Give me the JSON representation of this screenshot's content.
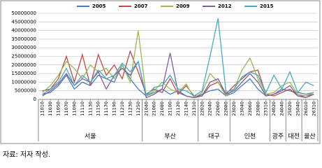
{
  "chart_data": {
    "type": "line",
    "categories": [
      "11010",
      "11030",
      "11050",
      "11070",
      "11090",
      "11110",
      "11130",
      "11150",
      "11170",
      "11190",
      "11210",
      "11230",
      "11250",
      "21040",
      "21060",
      "21080",
      "21100",
      "21120",
      "21140",
      "21310",
      "22020",
      "22040",
      "22060",
      "22080",
      "23020",
      "23040",
      "23060",
      "23080",
      "23310",
      "24020",
      "24040",
      "25020",
      "25040",
      "26010",
      "26310"
    ],
    "groups": [
      {
        "label": "서울",
        "count": 13
      },
      {
        "label": "부산",
        "count": 7
      },
      {
        "label": "대구",
        "count": 4
      },
      {
        "label": "인천",
        "count": 5
      },
      {
        "label": "광주",
        "count": 2
      },
      {
        "label": "대전",
        "count": 2
      },
      {
        "label": "울산",
        "count": 2
      }
    ],
    "series": [
      {
        "name": "2005",
        "color": "#4a7ebb",
        "values": [
          3000000,
          4000000,
          8000000,
          14000000,
          6000000,
          10000000,
          8000000,
          14000000,
          12000000,
          10000000,
          20000000,
          12000000,
          6000000,
          2000000,
          4000000,
          6000000,
          3000000,
          5000000,
          2000000,
          1000000,
          3000000,
          5000000,
          6000000,
          2000000,
          4000000,
          8000000,
          12000000,
          6000000,
          2000000,
          3000000,
          6000000,
          5000000,
          4000000,
          3000000,
          4000000
        ]
      },
      {
        "name": "2007",
        "color": "#be4b48",
        "values": [
          5000000,
          6000000,
          12000000,
          25000000,
          10000000,
          26000000,
          8000000,
          26000000,
          14000000,
          20000000,
          12000000,
          28000000,
          16000000,
          3000000,
          6000000,
          4000000,
          12000000,
          3000000,
          8000000,
          2000000,
          2000000,
          8000000,
          10000000,
          3000000,
          8000000,
          12000000,
          16000000,
          17000000,
          3000000,
          2000000,
          4000000,
          6000000,
          2000000,
          2000000,
          3000000
        ]
      },
      {
        "name": "2009",
        "color": "#98b954",
        "values": [
          4000000,
          8000000,
          14000000,
          22000000,
          18000000,
          12000000,
          20000000,
          16000000,
          18000000,
          12000000,
          20000000,
          10000000,
          40000000,
          2000000,
          5000000,
          10000000,
          6000000,
          4000000,
          9000000,
          1000000,
          4000000,
          15000000,
          10000000,
          2000000,
          6000000,
          17000000,
          24000000,
          12000000,
          3000000,
          4000000,
          8000000,
          10000000,
          3000000,
          2000000,
          4000000
        ]
      },
      {
        "name": "2012",
        "color": "#7d60a0",
        "values": [
          2000000,
          5000000,
          9000000,
          15000000,
          8000000,
          12000000,
          10000000,
          16000000,
          6000000,
          14000000,
          18000000,
          14000000,
          22000000,
          1000000,
          3000000,
          6000000,
          27000000,
          4000000,
          2000000,
          1000000,
          2000000,
          10000000,
          12000000,
          3000000,
          5000000,
          10000000,
          15000000,
          10000000,
          2000000,
          3000000,
          5000000,
          8000000,
          2000000,
          1000000,
          3000000
        ]
      },
      {
        "name": "2015",
        "color": "#46aac5",
        "values": [
          3000000,
          6000000,
          10000000,
          18000000,
          8000000,
          14000000,
          10000000,
          17000000,
          12000000,
          14000000,
          21000000,
          16000000,
          22000000,
          2000000,
          7000000,
          8000000,
          14000000,
          6000000,
          5000000,
          2000000,
          5000000,
          25000000,
          47000000,
          4000000,
          6000000,
          13000000,
          16000000,
          14000000,
          4000000,
          14000000,
          6000000,
          16000000,
          4000000,
          10000000,
          8000000
        ]
      }
    ],
    "ylim": [
      0,
      50000000
    ],
    "yticks": [
      0,
      5000000,
      10000000,
      15000000,
      20000000,
      25000000,
      30000000,
      35000000,
      40000000,
      45000000,
      50000000
    ],
    "grid": true,
    "legend": "top",
    "source": "자료: 저자 작성."
  }
}
